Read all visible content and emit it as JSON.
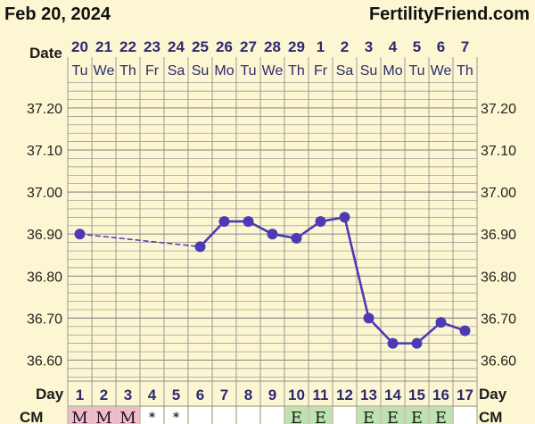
{
  "header": {
    "date": "Feb 20, 2024",
    "site": "FertilityFriend.com"
  },
  "row_labels": {
    "date": "Date",
    "day": "Day",
    "cm": "CM"
  },
  "colors": {
    "background": "#fcf7d2",
    "grid": "#8f8f8f",
    "line": "#4c3bb4",
    "label": "#2b2b6e",
    "cm_menstrual": "#f3b9cd",
    "cm_eggwhite": "#bfe3b0"
  },
  "chart_data": {
    "type": "line",
    "title": "",
    "xlabel": "",
    "ylabel": "",
    "ylim": [
      36.55,
      37.27
    ],
    "yticks": [
      "37.20",
      "37.10",
      "37.00",
      "36.90",
      "36.80",
      "36.70",
      "36.60"
    ],
    "x": [
      "20",
      "21",
      "22",
      "23",
      "24",
      "25",
      "26",
      "27",
      "28",
      "29",
      "1",
      "2",
      "3",
      "4",
      "5",
      "6",
      "7"
    ],
    "weekdays": [
      "Tu",
      "We",
      "Th",
      "Fr",
      "Sa",
      "Su",
      "Mo",
      "Tu",
      "We",
      "Th",
      "Fr",
      "Sa",
      "Su",
      "Mo",
      "Tu",
      "We",
      "Th"
    ],
    "cycle_days": [
      "1",
      "2",
      "3",
      "4",
      "5",
      "6",
      "7",
      "8",
      "9",
      "10",
      "11",
      "12",
      "13",
      "14",
      "15",
      "16",
      "17"
    ],
    "cervical_mucus": [
      "M",
      "M",
      "M",
      "*",
      "*",
      "",
      "",
      "",
      "",
      "E",
      "E",
      "",
      "E",
      "E",
      "E",
      "E",
      ""
    ],
    "series": [
      {
        "values": [
          36.9,
          null,
          null,
          null,
          null,
          36.87,
          36.93,
          36.93,
          36.9,
          36.89,
          36.93,
          36.94,
          36.7,
          36.64,
          36.64,
          36.69,
          36.67
        ]
      }
    ],
    "grid": true
  }
}
